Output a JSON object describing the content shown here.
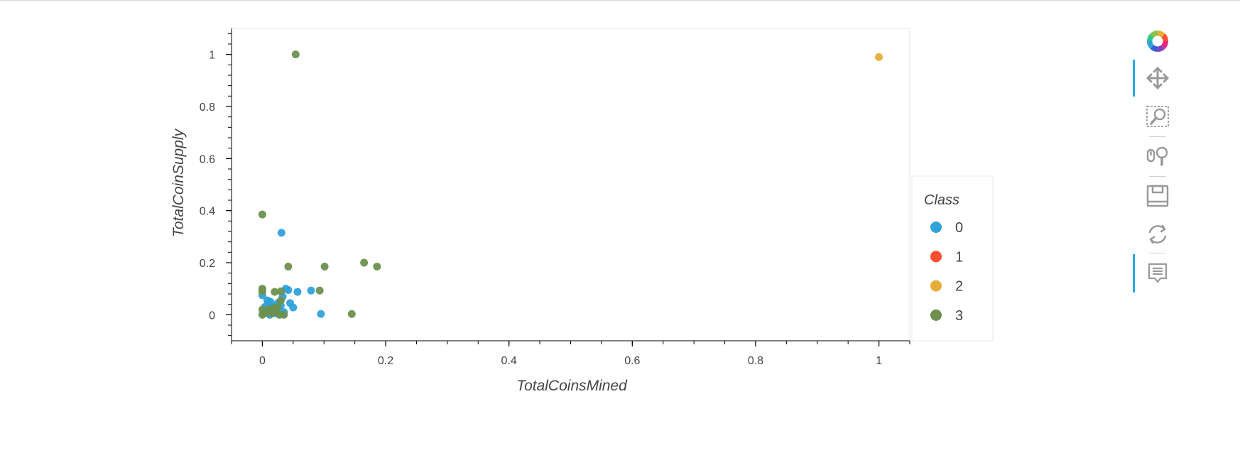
{
  "chart_data": {
    "type": "scatter",
    "title": "",
    "xlabel": "TotalCoinsMined",
    "ylabel": "TotalCoinSupply",
    "xlim": [
      -0.05,
      1.05
    ],
    "ylim": [
      -0.1,
      1.1
    ],
    "xticks": [
      0,
      0.2,
      0.4,
      0.6,
      0.8,
      1
    ],
    "xtick_labels": [
      "0",
      "0.2",
      "0.4",
      "0.6",
      "0.8",
      "1"
    ],
    "yticks": [
      0,
      0.2,
      0.4,
      0.6,
      0.8,
      1
    ],
    "ytick_labels": [
      "0",
      "0.2",
      "0.4",
      "0.6",
      "0.8",
      "1"
    ],
    "grid": false,
    "legend": {
      "title": "Class",
      "placement": "right",
      "entries": [
        {
          "label": "0",
          "color": "#30a2da"
        },
        {
          "label": "1",
          "color": "#fc4f30"
        },
        {
          "label": "2",
          "color": "#e5ae38"
        },
        {
          "label": "3",
          "color": "#6d904f"
        }
      ]
    },
    "series": [
      {
        "name": "0",
        "color": "#30a2da",
        "points": [
          [
            0,
            0.075
          ],
          [
            0.008,
            0.055
          ],
          [
            0.01,
            0.045
          ],
          [
            0.013,
            0.05
          ],
          [
            0.02,
            0.025
          ],
          [
            0.025,
            0.045
          ],
          [
            0.03,
            0.035
          ],
          [
            0.033,
            0.07
          ],
          [
            0.038,
            0.1
          ],
          [
            0.042,
            0.095
          ],
          [
            0.045,
            0.045
          ],
          [
            0.05,
            0.028
          ],
          [
            0.057,
            0.088
          ],
          [
            0.079,
            0.093
          ],
          [
            0.095,
            0.003
          ],
          [
            0.031,
            0.315
          ],
          [
            0.012,
            0.0
          ],
          [
            0.022,
            0.005
          ],
          [
            0.027,
            0.015
          ],
          [
            0.017,
            0.032
          ],
          [
            0.007,
            0.012
          ],
          [
            0.004,
            0.03
          ],
          [
            0.035,
            0.01
          ]
        ]
      },
      {
        "name": "1",
        "color": "#fc4f30",
        "points": []
      },
      {
        "name": "2",
        "color": "#e5ae38",
        "points": [
          [
            1.0,
            0.99
          ]
        ]
      },
      {
        "name": "3",
        "color": "#6d904f",
        "points": [
          [
            0.054,
            1.0
          ],
          [
            0.0,
            0.385
          ],
          [
            0.042,
            0.185
          ],
          [
            0.101,
            0.185
          ],
          [
            0.165,
            0.2
          ],
          [
            0.186,
            0.185
          ],
          [
            0.0,
            0.1
          ],
          [
            0.0,
            0.09
          ],
          [
            0.02,
            0.088
          ],
          [
            0.03,
            0.09
          ],
          [
            0.093,
            0.093
          ],
          [
            0.145,
            0.003
          ],
          [
            0.0,
            0.0
          ],
          [
            0.005,
            0.01
          ],
          [
            0.01,
            0.02
          ],
          [
            0.015,
            0.005
          ],
          [
            0.02,
            0.015
          ],
          [
            0.025,
            0.03
          ],
          [
            0.03,
            0.055
          ],
          [
            0.035,
            0.0
          ],
          [
            0.0,
            0.02
          ],
          [
            0.008,
            0.015
          ],
          [
            0.018,
            0.025
          ],
          [
            0.028,
            0.0
          ],
          [
            0.003,
            0.005
          ]
        ]
      }
    ]
  },
  "toolbar": {
    "tools": [
      {
        "id": "bokeh-logo",
        "icon": "bokeh-logo-icon",
        "active": false
      },
      {
        "id": "pan",
        "icon": "pan-icon",
        "active": true
      },
      {
        "id": "box-zoom",
        "icon": "box-zoom-icon",
        "active": false
      },
      {
        "id": "wheel-zoom",
        "icon": "wheel-zoom-icon",
        "active": false
      },
      {
        "id": "save",
        "icon": "save-icon",
        "active": false
      },
      {
        "id": "reset",
        "icon": "reset-icon",
        "active": false
      },
      {
        "id": "hover",
        "icon": "hover-icon",
        "active": true
      }
    ]
  }
}
